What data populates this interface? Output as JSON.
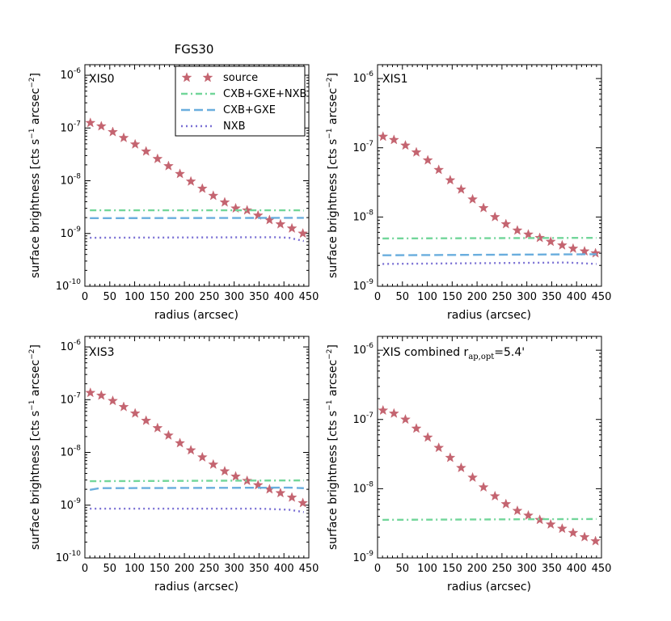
{
  "figure_title": "FGS30",
  "colors": {
    "source": "#c46470",
    "cxb_gxe_nxb": "#72d69a",
    "cxb_gxe": "#6aaede",
    "nxb": "#7a70d4"
  },
  "legend": {
    "source": "source",
    "cxb_gxe_nxb": "CXB+GXE+NXB",
    "cxb_gxe": "CXB+GXE",
    "nxb": "NXB"
  },
  "axis_labels": {
    "x": "radius (arcsec)",
    "y_main": "surface brightness [cts s",
    "y_sup1": "−1",
    "y_mid": " arcsec",
    "y_sup2": "−2",
    "y_end": "]"
  },
  "panel_titles": {
    "xis0": "XIS0",
    "xis1": "XIS1",
    "xis3": "XIS3",
    "combined_main": "XIS combined r",
    "combined_sub": "ap,opt",
    "combined_tail": "=5.4'"
  },
  "tick_labels": {
    "x": [
      "0",
      "50",
      "100",
      "150",
      "200",
      "250",
      "300",
      "350",
      "400",
      "450"
    ],
    "y": {
      "e-10": {
        "base": "10",
        "exp": "-10"
      },
      "e-9": {
        "base": "10",
        "exp": "-9"
      },
      "e-8": {
        "base": "10",
        "exp": "-8"
      },
      "e-7": {
        "base": "10",
        "exp": "-7"
      },
      "e-6": {
        "base": "10",
        "exp": "-6"
      }
    }
  },
  "chart_data": [
    {
      "id": "xis0",
      "type": "scatter",
      "title": "XIS0",
      "xlabel": "radius (arcsec)",
      "ylabel": "surface brightness [cts s−1 arcsec−2]",
      "xlim": [
        0,
        450
      ],
      "ylim_exp": [
        -10,
        -5.8
      ],
      "yscale": "log",
      "y_ticks_exp": [
        -10,
        -9,
        -8,
        -7,
        -6
      ],
      "x": [
        11,
        33,
        56,
        78,
        101,
        123,
        146,
        168,
        191,
        213,
        236,
        258,
        281,
        303,
        326,
        348,
        371,
        393,
        416,
        438
      ],
      "series": [
        {
          "name": "source",
          "style": "stars",
          "values": [
            1.25e-07,
            1.08e-07,
            8.4e-08,
            6.5e-08,
            4.9e-08,
            3.6e-08,
            2.6e-08,
            1.9e-08,
            1.35e-08,
            9.7e-09,
            7.1e-09,
            5.2e-09,
            3.9e-09,
            3e-09,
            2.75e-09,
            2.2e-09,
            1.8e-09,
            1.5e-09,
            1.25e-09,
            1e-09
          ]
        },
        {
          "name": "CXB+GXE+NXB",
          "style": "dashdot",
          "points": [
            [
              10,
              2.75e-09
            ],
            [
              430,
              2.75e-09
            ],
            [
              440,
              2.72e-09
            ]
          ]
        },
        {
          "name": "CXB+GXE",
          "style": "dashed",
          "points": [
            [
              10,
              1.95e-09
            ],
            [
              440,
              1.98e-09
            ]
          ]
        },
        {
          "name": "NXB",
          "style": "dotted",
          "points": [
            [
              10,
              8.3e-10
            ],
            [
              380,
              8.5e-10
            ],
            [
              410,
              8.3e-10
            ],
            [
              440,
              7.2e-10
            ]
          ]
        }
      ]
    },
    {
      "id": "xis1",
      "type": "scatter",
      "title": "XIS1",
      "xlabel": "radius (arcsec)",
      "ylabel": "surface brightness [cts s−1 arcsec−2]",
      "xlim": [
        0,
        450
      ],
      "ylim_exp": [
        -9,
        -5.8
      ],
      "yscale": "log",
      "y_ticks_exp": [
        -9,
        -8,
        -7,
        -6
      ],
      "x": [
        11,
        33,
        56,
        78,
        101,
        123,
        146,
        168,
        191,
        213,
        236,
        258,
        281,
        303,
        326,
        348,
        371,
        393,
        416,
        438
      ],
      "series": [
        {
          "name": "source",
          "style": "stars",
          "values": [
            1.45e-07,
            1.3e-07,
            1.08e-07,
            8.6e-08,
            6.6e-08,
            4.8e-08,
            3.4e-08,
            2.5e-08,
            1.8e-08,
            1.35e-08,
            1e-08,
            7.9e-09,
            6.4e-09,
            5.6e-09,
            5e-09,
            4.4e-09,
            3.9e-09,
            3.5e-09,
            3.2e-09,
            3e-09
          ]
        },
        {
          "name": "CXB+GXE+NXB",
          "style": "dashdot",
          "points": [
            [
              10,
              4.9e-09
            ],
            [
              440,
              5e-09
            ]
          ]
        },
        {
          "name": "CXB+GXE",
          "style": "dashed",
          "points": [
            [
              10,
              2.8e-09
            ],
            [
              440,
              2.9e-09
            ]
          ]
        },
        {
          "name": "NXB",
          "style": "dotted",
          "points": [
            [
              10,
              2.1e-09
            ],
            [
              380,
              2.2e-09
            ],
            [
              440,
              2.1e-09
            ]
          ]
        }
      ]
    },
    {
      "id": "xis3",
      "type": "scatter",
      "title": "XIS3",
      "xlabel": "radius (arcsec)",
      "ylabel": "surface brightness [cts s−1 arcsec−2]",
      "xlim": [
        0,
        450
      ],
      "ylim_exp": [
        -10,
        -5.8
      ],
      "yscale": "log",
      "y_ticks_exp": [
        -10,
        -9,
        -8,
        -7,
        -6
      ],
      "x": [
        11,
        33,
        56,
        78,
        101,
        123,
        146,
        168,
        191,
        213,
        236,
        258,
        281,
        303,
        326,
        348,
        371,
        393,
        416,
        438
      ],
      "series": [
        {
          "name": "source",
          "style": "stars",
          "values": [
            1.35e-07,
            1.2e-07,
            9.5e-08,
            7.3e-08,
            5.5e-08,
            4e-08,
            2.9e-08,
            2.1e-08,
            1.5e-08,
            1.1e-08,
            8.1e-09,
            5.9e-09,
            4.4e-09,
            3.5e-09,
            2.9e-09,
            2.4e-09,
            2e-09,
            1.7e-09,
            1.4e-09,
            1.1e-09
          ]
        },
        {
          "name": "CXB+GXE+NXB",
          "style": "dashdot",
          "points": [
            [
              10,
              2.85e-09
            ],
            [
              440,
              2.95e-09
            ]
          ]
        },
        {
          "name": "CXB+GXE",
          "style": "dashed",
          "points": [
            [
              10,
              1.95e-09
            ],
            [
              30,
              2.1e-09
            ],
            [
              410,
              2.15e-09
            ],
            [
              440,
              2.1e-09
            ]
          ]
        },
        {
          "name": "NXB",
          "style": "dotted",
          "points": [
            [
              10,
              8.6e-10
            ],
            [
              350,
              8.6e-10
            ],
            [
              410,
              8.2e-10
            ],
            [
              440,
              7.4e-10
            ]
          ]
        }
      ]
    },
    {
      "id": "combined",
      "type": "scatter",
      "title": "XIS combined r_ap,opt=5.4'",
      "xlabel": "radius (arcsec)",
      "ylabel": "surface brightness [cts s−1 arcsec−2]",
      "xlim": [
        0,
        450
      ],
      "ylim_exp": [
        -9,
        -5.8
      ],
      "yscale": "log",
      "y_ticks_exp": [
        -9,
        -8,
        -7,
        -6
      ],
      "x": [
        11,
        33,
        56,
        78,
        101,
        123,
        146,
        168,
        191,
        213,
        236,
        258,
        281,
        303,
        326,
        348,
        371,
        393,
        416,
        438
      ],
      "series": [
        {
          "name": "source",
          "style": "stars",
          "values": [
            1.35e-07,
            1.22e-07,
            1e-07,
            7.4e-08,
            5.5e-08,
            3.9e-08,
            2.8e-08,
            2e-08,
            1.45e-08,
            1.05e-08,
            7.8e-09,
            6e-09,
            4.8e-09,
            4.1e-09,
            3.55e-09,
            3.05e-09,
            2.65e-09,
            2.3e-09,
            2e-09,
            1.75e-09
          ]
        },
        {
          "name": "CXB+GXE+NXB",
          "style": "dashdot",
          "points": [
            [
              10,
              3.55e-09
            ],
            [
              440,
              3.65e-09
            ]
          ]
        }
      ]
    }
  ]
}
